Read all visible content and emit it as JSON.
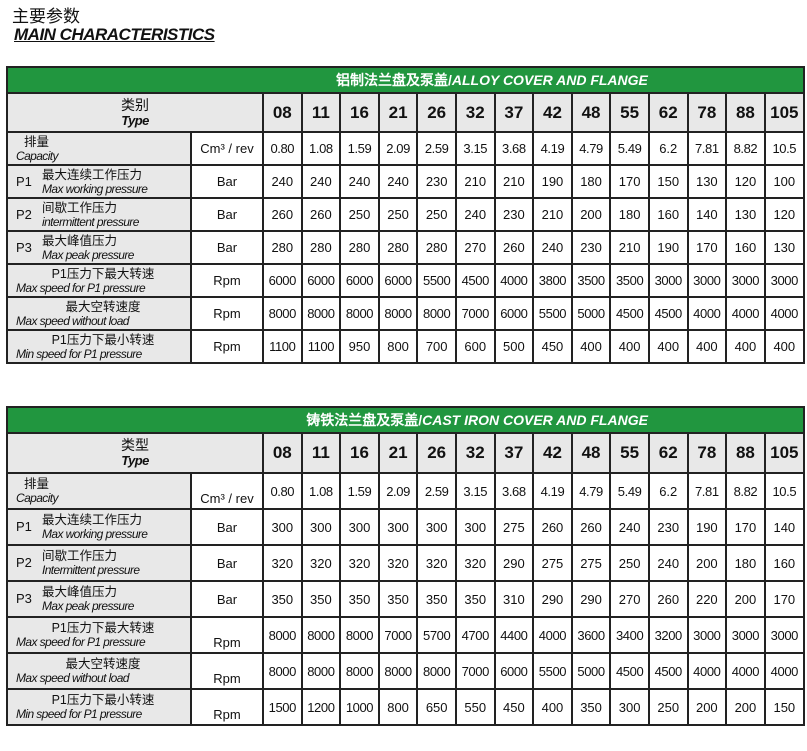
{
  "heading_cn": "主要参数",
  "heading_en": "MAIN CHARACTERISTICS",
  "tables": [
    {
      "title_cn": "铝制法兰盘及泵盖/",
      "title_en": "ALLOY COVER AND FLANGE",
      "type_cn": "类别",
      "type_en": "Type",
      "models": [
        "08",
        "11",
        "16",
        "21",
        "26",
        "32",
        "37",
        "42",
        "48",
        "55",
        "62",
        "78",
        "88",
        "105"
      ],
      "rows": [
        {
          "prefix": "",
          "cn": "排量",
          "en": "Capacity",
          "unit": "Cm³ / rev",
          "values": [
            "0.80",
            "1.08",
            "1.59",
            "2.09",
            "2.59",
            "3.15",
            "3.68",
            "4.19",
            "4.79",
            "5.49",
            "6.2",
            "7.81",
            "8.82",
            "10.5"
          ]
        },
        {
          "prefix": "P1",
          "cn": "最大连续工作压力",
          "en": "Max working pressure",
          "unit": "Bar",
          "values": [
            "240",
            "240",
            "240",
            "240",
            "230",
            "210",
            "210",
            "190",
            "180",
            "170",
            "150",
            "130",
            "120",
            "100"
          ]
        },
        {
          "prefix": "P2",
          "cn": "间歇工作压力",
          "en": "intermittent pressure",
          "unit": "Bar",
          "values": [
            "260",
            "260",
            "250",
            "250",
            "250",
            "240",
            "230",
            "210",
            "200",
            "180",
            "160",
            "140",
            "130",
            "120"
          ]
        },
        {
          "prefix": "P3",
          "cn": "最大峰值压力",
          "en": "Max peak pressure",
          "unit": "Bar",
          "values": [
            "280",
            "280",
            "280",
            "280",
            "280",
            "270",
            "260",
            "240",
            "230",
            "210",
            "190",
            "170",
            "160",
            "130"
          ]
        },
        {
          "prefix": "",
          "cn": "P1压力下最大转速",
          "en": "Max speed for P1 pressure",
          "unit": "Rpm",
          "values": [
            "6000",
            "6000",
            "6000",
            "6000",
            "5500",
            "4500",
            "4000",
            "3800",
            "3500",
            "3500",
            "3000",
            "3000",
            "3000",
            "3000"
          ]
        },
        {
          "prefix": "",
          "cn": "最大空转速度",
          "en": "Max speed without load",
          "unit": "Rpm",
          "values": [
            "8000",
            "8000",
            "8000",
            "8000",
            "8000",
            "7000",
            "6000",
            "5500",
            "5000",
            "4500",
            "4500",
            "4000",
            "4000",
            "4000"
          ]
        },
        {
          "prefix": "",
          "cn": "P1压力下最小转速",
          "en": "Min  speed for P1 pressure",
          "unit": "Rpm",
          "values": [
            "1100",
            "1100",
            "950",
            "800",
            "700",
            "600",
            "500",
            "450",
            "400",
            "400",
            "400",
            "400",
            "400",
            "400"
          ]
        }
      ]
    },
    {
      "title_cn": "铸铁法兰盘及泵盖/",
      "title_en": "CAST IRON COVER AND FLANGE",
      "type_cn": "类型",
      "type_en": "Type",
      "models": [
        "08",
        "11",
        "16",
        "21",
        "26",
        "32",
        "37",
        "42",
        "48",
        "55",
        "62",
        "78",
        "88",
        "105"
      ],
      "rows": [
        {
          "prefix": "",
          "cn": "排量",
          "en": "Capacity",
          "unit": "Cm³ / rev",
          "values": [
            "0.80",
            "1.08",
            "1.59",
            "2.09",
            "2.59",
            "3.15",
            "3.68",
            "4.19",
            "4.79",
            "5.49",
            "6.2",
            "7.81",
            "8.82",
            "10.5"
          ]
        },
        {
          "prefix": "P1",
          "cn": "最大连续工作压力",
          "en": "Max working pressure",
          "unit": "Bar",
          "values": [
            "300",
            "300",
            "300",
            "300",
            "300",
            "300",
            "275",
            "260",
            "260",
            "240",
            "230",
            "190",
            "170",
            "140"
          ]
        },
        {
          "prefix": "P2",
          "cn": "间歇工作压力",
          "en": "Intermittent pressure",
          "unit": "Bar",
          "values": [
            "320",
            "320",
            "320",
            "320",
            "320",
            "320",
            "290",
            "275",
            "275",
            "250",
            "240",
            "200",
            "180",
            "160"
          ]
        },
        {
          "prefix": "P3",
          "cn": "最大峰值压力",
          "en": "Max peak pressure",
          "unit": "Bar",
          "values": [
            "350",
            "350",
            "350",
            "350",
            "350",
            "350",
            "310",
            "290",
            "290",
            "270",
            "260",
            "220",
            "200",
            "170"
          ]
        },
        {
          "prefix": "",
          "cn": "P1压力下最大转速",
          "en": "Max speed for P1 pressure",
          "unit": "Rpm",
          "values": [
            "8000",
            "8000",
            "8000",
            "7000",
            "5700",
            "4700",
            "4400",
            "4000",
            "3600",
            "3400",
            "3200",
            "3000",
            "3000",
            "3000"
          ]
        },
        {
          "prefix": "",
          "cn": "最大空转速度",
          "en": "Max speed without load",
          "unit": "Rpm",
          "values": [
            "8000",
            "8000",
            "8000",
            "8000",
            "8000",
            "7000",
            "6000",
            "5500",
            "5000",
            "4500",
            "4500",
            "4000",
            "4000",
            "4000"
          ]
        },
        {
          "prefix": "",
          "cn": "P1压力下最小转速",
          "en": "Min  speed for P1 pressure",
          "unit": "Rpm",
          "values": [
            "1500",
            "1200",
            "1000",
            "800",
            "650",
            "550",
            "450",
            "400",
            "350",
            "300",
            "250",
            "200",
            "200",
            "150"
          ]
        }
      ]
    }
  ],
  "colors": {
    "header_green": "#21963f",
    "label_gray": "#e8e8e8"
  }
}
